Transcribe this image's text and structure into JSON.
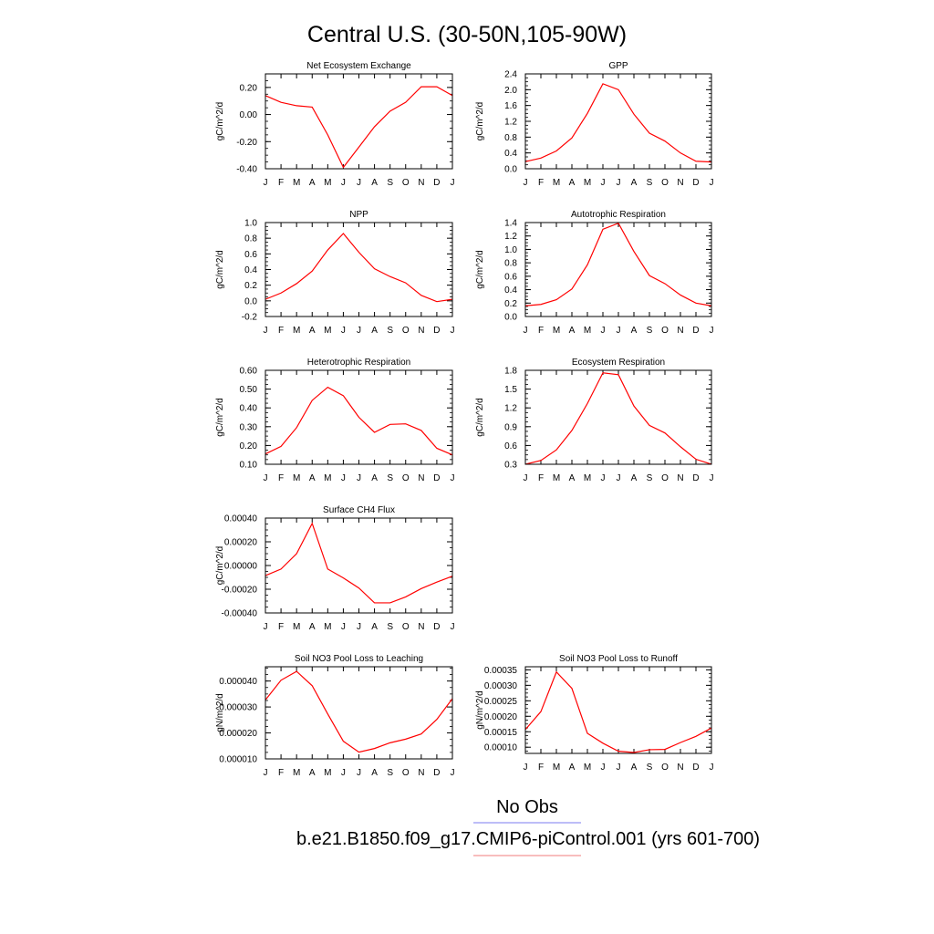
{
  "title": "Central U.S. (30-50N,105-90W)",
  "months": [
    "J",
    "F",
    "M",
    "A",
    "M",
    "J",
    "J",
    "A",
    "S",
    "O",
    "N",
    "D",
    "J"
  ],
  "line_color": "#ff0000",
  "chart_data": [
    {
      "type": "line",
      "title": "Net Ecosystem Exchange",
      "ylabel": "gC/m^2/d",
      "ylim": [
        -0.4,
        0.3
      ],
      "yticks": [
        -0.4,
        -0.2,
        0.0,
        0.2
      ],
      "ytick_labels": [
        "-0.40",
        "-0.20",
        "0.00",
        "0.20"
      ],
      "values": [
        0.14,
        0.09,
        0.065,
        0.055,
        -0.15,
        -0.39,
        -0.24,
        -0.09,
        0.025,
        0.09,
        0.205,
        0.205,
        0.14
      ]
    },
    {
      "type": "line",
      "title": "GPP",
      "ylabel": "gC/m^2/d",
      "ylim": [
        0.0,
        2.4
      ],
      "yticks": [
        0.0,
        0.4,
        0.8,
        1.2,
        1.6,
        2.0,
        2.4
      ],
      "ytick_labels": [
        "0.0",
        "0.4",
        "0.8",
        "1.2",
        "1.6",
        "2.0",
        "2.4"
      ],
      "values": [
        0.18,
        0.27,
        0.45,
        0.78,
        1.4,
        2.15,
        2.0,
        1.38,
        0.9,
        0.7,
        0.4,
        0.19,
        0.17
      ]
    },
    {
      "type": "line",
      "title": "NPP",
      "ylabel": "gC/m^2/d",
      "ylim": [
        -0.2,
        1.0
      ],
      "yticks": [
        -0.2,
        0.0,
        0.2,
        0.4,
        0.6,
        0.8,
        1.0
      ],
      "ytick_labels": [
        "-0.2",
        "0.0",
        "0.2",
        "0.4",
        "0.6",
        "0.8",
        "1.0"
      ],
      "values": [
        0.02,
        0.1,
        0.22,
        0.38,
        0.65,
        0.86,
        0.62,
        0.41,
        0.31,
        0.23,
        0.07,
        -0.01,
        0.02
      ]
    },
    {
      "type": "line",
      "title": "Autotrophic Respiration",
      "ylabel": "gC/m^2/d",
      "ylim": [
        0.0,
        1.4
      ],
      "yticks": [
        0.0,
        0.2,
        0.4,
        0.6,
        0.8,
        1.0,
        1.2,
        1.4
      ],
      "ytick_labels": [
        "0.0",
        "0.2",
        "0.4",
        "0.6",
        "0.8",
        "1.0",
        "1.2",
        "1.4"
      ],
      "values": [
        0.16,
        0.18,
        0.25,
        0.41,
        0.77,
        1.3,
        1.39,
        0.97,
        0.61,
        0.49,
        0.32,
        0.2,
        0.16
      ]
    },
    {
      "type": "line",
      "title": "Heterotrophic Respiration",
      "ylabel": "gC/m^2/d",
      "ylim": [
        0.1,
        0.6
      ],
      "yticks": [
        0.1,
        0.2,
        0.3,
        0.4,
        0.5,
        0.6
      ],
      "ytick_labels": [
        "0.10",
        "0.20",
        "0.30",
        "0.40",
        "0.50",
        "0.60"
      ],
      "values": [
        0.155,
        0.195,
        0.295,
        0.44,
        0.51,
        0.465,
        0.35,
        0.27,
        0.312,
        0.315,
        0.28,
        0.185,
        0.15
      ]
    },
    {
      "type": "line",
      "title": "Ecosystem Respiration",
      "ylabel": "gC/m^2/d",
      "ylim": [
        0.3,
        1.8
      ],
      "yticks": [
        0.3,
        0.6,
        0.9,
        1.2,
        1.5,
        1.8
      ],
      "ytick_labels": [
        "0.3",
        "0.6",
        "0.9",
        "1.2",
        "1.5",
        "1.8"
      ],
      "values": [
        0.3,
        0.36,
        0.53,
        0.84,
        1.27,
        1.76,
        1.73,
        1.23,
        0.92,
        0.8,
        0.58,
        0.38,
        0.3
      ]
    },
    {
      "type": "line",
      "title": "Surface CH4 Flux",
      "ylabel": "gC/m^2/d",
      "ylim": [
        -0.0004,
        0.0004
      ],
      "yticks": [
        -0.0004,
        -0.0002,
        0.0,
        0.0002,
        0.0004
      ],
      "ytick_labels": [
        "-0.00040",
        "-0.00020",
        "0.00000",
        "0.00020",
        "0.00040"
      ],
      "values": [
        -8.5e-05,
        -3e-05,
        0.0001,
        0.000355,
        -3e-05,
        -0.000105,
        -0.00019,
        -0.000315,
        -0.000315,
        -0.000265,
        -0.000195,
        -0.00014,
        -9e-05
      ]
    },
    {
      "type": "line",
      "title": "Soil NO3 Pool Loss to Leaching",
      "ylabel": "gN/m^2/d",
      "ylim": [
        1e-05,
        4.55e-05
      ],
      "yticks": [
        1e-05,
        2e-05,
        3e-05,
        4e-05
      ],
      "ytick_labels": [
        "0.000010",
        "0.000020",
        "0.000030",
        "0.000040"
      ],
      "values": [
        3.27e-05,
        4.03e-05,
        4.37e-05,
        3.82e-05,
        2.73e-05,
        1.68e-05,
        1.26e-05,
        1.4e-05,
        1.62e-05,
        1.76e-05,
        1.96e-05,
        2.52e-05,
        3.32e-05
      ]
    },
    {
      "type": "line",
      "title": "Soil NO3 Pool Loss to Runoff",
      "ylabel": "gN/m^2/d",
      "ylim": [
        8e-05,
        0.00036
      ],
      "yticks": [
        0.0001,
        0.00015,
        0.0002,
        0.00025,
        0.0003,
        0.00035
      ],
      "ytick_labels": [
        "0.00010",
        "0.00015",
        "0.00020",
        "0.00025",
        "0.00030",
        "0.00035"
      ],
      "values": [
        0.000157,
        0.000215,
        0.000343,
        0.00029,
        0.000145,
        0.000113,
        8.7e-05,
        8.3e-05,
        9.2e-05,
        9.3e-05,
        0.000115,
        0.000135,
        0.000162
      ]
    }
  ],
  "legend": {
    "obs_label": "No Obs",
    "obs_color": "#7b7bf0",
    "case_label": "b.e21.B1850.f09_g17.CMIP6-piControl.001 (yrs 601-700)",
    "case_color": "#f07b7b"
  }
}
